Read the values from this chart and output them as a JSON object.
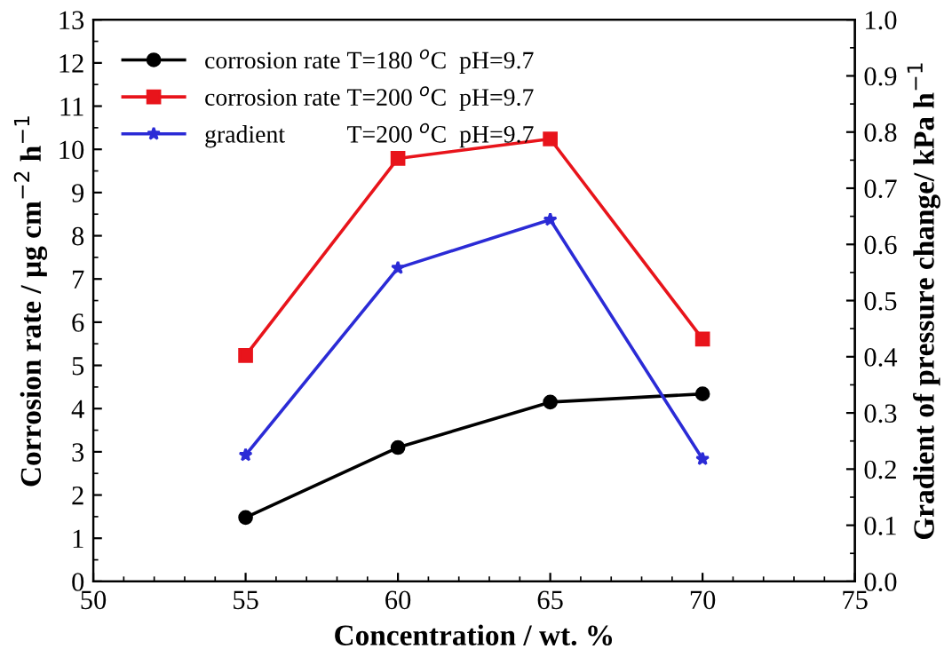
{
  "chart_data": {
    "type": "line",
    "xlabel": "Concentration / wt. %",
    "ylabel": "Corrosion rate / µg cm$^{−2}$ h$^{−1}$",
    "y2label": "Gradient of pressure change/ kPa h$^{−1}$",
    "x": [
      55,
      60,
      65,
      70
    ],
    "series": [
      {
        "name": "corrosion rate T=180 $^{o}$C  pH=9.7",
        "color": "#000000",
        "marker": "circle",
        "values": [
          1.48,
          3.1,
          4.15,
          4.34
        ]
      },
      {
        "name": "corrosion rate T=200 $^{o}$C  pH=9.7",
        "color": "#e8141b",
        "marker": "square",
        "values": [
          5.23,
          9.79,
          10.24,
          5.61
        ]
      },
      {
        "name": "gradient          T=200 $^{o}$C  pH=9.7",
        "color": "#2b2bd6",
        "marker": "star",
        "axis": "y2",
        "values": [
          0.225,
          0.558,
          0.644,
          0.218
        ]
      }
    ],
    "xlim": [
      50,
      75
    ],
    "xticks": [
      50,
      55,
      60,
      65,
      70,
      75
    ],
    "ylim": [
      0,
      13
    ],
    "yticks": [
      0,
      1,
      2,
      3,
      4,
      5,
      6,
      7,
      8,
      9,
      10,
      11,
      12,
      13
    ],
    "y2lim": [
      0,
      1.0
    ],
    "y2ticks": [
      {
        "value": 0,
        "label": "0.0"
      },
      0.1,
      0.2,
      0.3,
      0.4,
      0.5,
      0.6,
      0.7,
      0.8,
      0.9,
      {
        "value": 1.0,
        "label": "1.0"
      }
    ],
    "legend": "top left",
    "grid": false,
    "line_style": "solid"
  }
}
